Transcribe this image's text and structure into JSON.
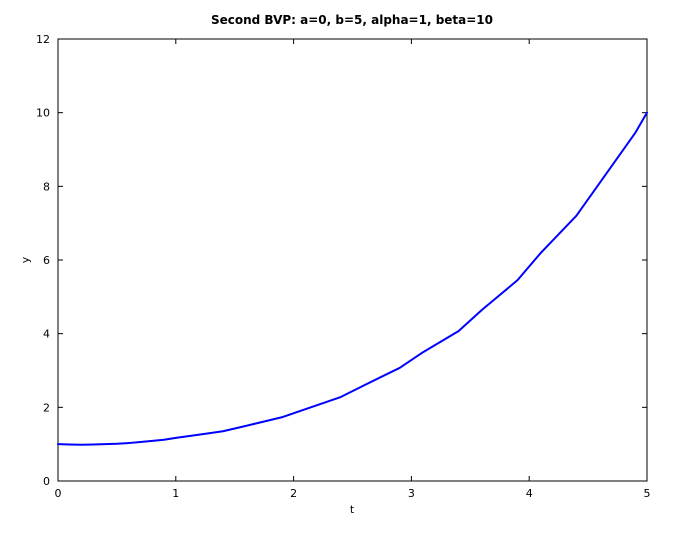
{
  "chart_data": {
    "type": "line",
    "title": "Second BVP: a=0, b=5, alpha=1, beta=10",
    "xlabel": "t",
    "ylabel": "y",
    "xlim": [
      0,
      5
    ],
    "ylim": [
      0,
      12
    ],
    "xticks": [
      0,
      1,
      2,
      3,
      4,
      5
    ],
    "yticks": [
      0,
      2,
      4,
      6,
      8,
      10,
      12
    ],
    "grid": false,
    "series": [
      {
        "color": "#0000ff",
        "x": [
          0,
          0.1,
          0.2,
          0.3,
          0.4,
          0.5,
          0.6,
          0.7,
          0.8,
          0.9,
          1.0,
          1.2,
          1.4,
          1.6,
          1.9,
          2.1,
          2.4,
          2.6,
          2.9,
          3.1,
          3.4,
          3.6,
          3.9,
          4.1,
          4.4,
          4.6,
          4.9,
          5.0
        ],
        "y": [
          1.0,
          0.99,
          0.985,
          0.99,
          1.0,
          1.01,
          1.03,
          1.06,
          1.09,
          1.12,
          1.17,
          1.26,
          1.35,
          1.5,
          1.73,
          1.95,
          2.28,
          2.6,
          3.07,
          3.5,
          4.07,
          4.65,
          5.45,
          6.2,
          7.2,
          8.1,
          9.45,
          10.0
        ]
      }
    ]
  }
}
